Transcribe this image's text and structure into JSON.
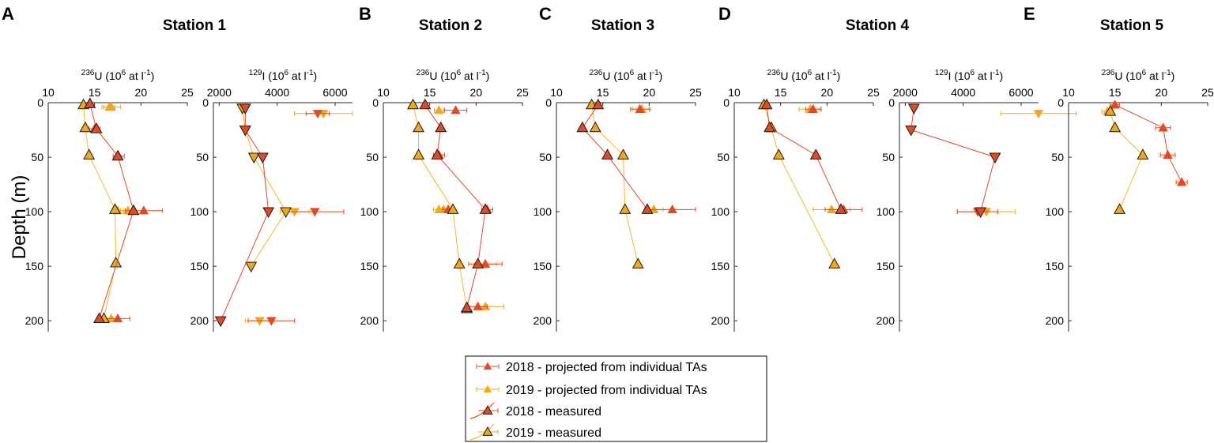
{
  "colors": {
    "c2018": "#e04a25",
    "c2019": "#f2a81d",
    "c2019line": "#f5b82a"
  },
  "ylabel": "Depth (m)",
  "legend": [
    {
      "key": "p18",
      "label": "2018 - projected from individual TAs"
    },
    {
      "key": "p19",
      "label": "2019 - projected from individual TAs"
    },
    {
      "key": "m18",
      "label": "2018 - measured"
    },
    {
      "key": "m19",
      "label": "2019 - measured"
    }
  ],
  "letters": [
    "A",
    "B",
    "C",
    "D",
    "E"
  ],
  "stations": [
    "Station 1",
    "Station 2",
    "Station 3",
    "Station 4",
    "Station 5"
  ],
  "chart_data": [
    {
      "type": "scatter",
      "id": "s1u",
      "letter": "A",
      "station": "Station 1",
      "xlabel": {
        "sup": "236",
        "iso": "U",
        "unit": "6",
        "rest": " at l"
      },
      "xlim": [
        10,
        25
      ],
      "ylim": [
        0,
        210
      ],
      "xticks": [
        10,
        15,
        20,
        25
      ],
      "yticks": [
        0,
        50,
        100,
        150,
        200
      ],
      "series": [
        {
          "name": "2019 - measured",
          "marker": "up",
          "line": true,
          "points": [
            {
              "x": 13.8,
              "y": 2
            },
            {
              "x": 14,
              "y": 23
            },
            {
              "x": 14.4,
              "y": 48
            },
            {
              "x": 17.2,
              "y": 98
            },
            {
              "x": 17.3,
              "y": 147
            },
            {
              "x": 16,
              "y": 198
            }
          ]
        },
        {
          "name": "2018 - measured",
          "marker": "up",
          "line": true,
          "points": [
            {
              "x": 14.5,
              "y": 1
            },
            {
              "x": 15.2,
              "y": 24
            },
            {
              "x": 17.5,
              "y": 49
            },
            {
              "x": 19.2,
              "y": 99
            },
            {
              "x": 15.5,
              "y": 198
            }
          ]
        },
        {
          "name": "2019 - projected",
          "marker": "up",
          "points": [
            {
              "x": 16.8,
              "y": 4,
              "xerr": 1
            },
            {
              "x": 16.6,
              "y": 4,
              "xerr": 0.6
            },
            {
              "x": 18.6,
              "y": 99,
              "xerr": 0.8
            },
            {
              "x": 17.5,
              "y": 99,
              "xerr": 0.6
            },
            {
              "x": 16.8,
              "y": 198,
              "xerr": 0.8
            }
          ]
        },
        {
          "name": "2018 - projected",
          "marker": "up",
          "points": [
            {
              "x": 15,
              "y": 24,
              "xerr": 0.6
            },
            {
              "x": 17.6,
              "y": 49,
              "xerr": 0.6
            },
            {
              "x": 20.3,
              "y": 99,
              "xerr": 2
            },
            {
              "x": 17.5,
              "y": 198,
              "xerr": 1.3
            }
          ]
        }
      ]
    },
    {
      "type": "scatter",
      "id": "s1i",
      "station": "Station 1",
      "xlabel": {
        "sup": "129",
        "iso": "I",
        "unit": "6",
        "rest": " at l"
      },
      "xlim": [
        1800,
        6600
      ],
      "ylim": [
        0,
        210
      ],
      "xticks": [
        2000,
        4000,
        6000
      ],
      "yticks": [
        0,
        50,
        100,
        150,
        200
      ],
      "series": [
        {
          "name": "2019 - measured",
          "marker": "down",
          "line": true,
          "points": [
            {
              "x": 2800,
              "y": 5
            },
            {
              "x": 2900,
              "y": 25
            },
            {
              "x": 3200,
              "y": 50
            },
            {
              "x": 4300,
              "y": 100
            },
            {
              "x": 3100,
              "y": 150
            }
          ]
        },
        {
          "name": "2018 - measured",
          "marker": "down",
          "line": true,
          "points": [
            {
              "x": 2900,
              "y": 5
            },
            {
              "x": 2900,
              "y": 25
            },
            {
              "x": 3500,
              "y": 50
            },
            {
              "x": 3700,
              "y": 100
            },
            {
              "x": 2050,
              "y": 200
            }
          ]
        },
        {
          "name": "2019 - projected",
          "marker": "down",
          "points": [
            {
              "x": 5600,
              "y": 10,
              "xerr": 1000
            },
            {
              "x": 4600,
              "y": 100,
              "xerr": 500
            },
            {
              "x": 3400,
              "y": 200,
              "xerr": 500
            }
          ]
        },
        {
          "name": "2018 - projected",
          "marker": "down",
          "points": [
            {
              "x": 5400,
              "y": 10,
              "xerr": 400
            },
            {
              "x": 5300,
              "y": 100,
              "xerr": 1000
            },
            {
              "x": 3800,
              "y": 200,
              "xerr": 800
            }
          ]
        }
      ]
    },
    {
      "type": "scatter",
      "id": "s2u",
      "letter": "B",
      "station": "Station 2",
      "xlabel": {
        "sup": "236",
        "iso": "U",
        "unit": "6",
        "rest": " at l"
      },
      "xlim": [
        10,
        25
      ],
      "ylim": [
        0,
        210
      ],
      "xticks": [
        10,
        15,
        20,
        25
      ],
      "yticks": [
        0,
        50,
        100,
        150,
        200
      ],
      "series": [
        {
          "name": "2019 - measured",
          "marker": "up",
          "line": true,
          "points": [
            {
              "x": 13.2,
              "y": 2
            },
            {
              "x": 13.8,
              "y": 23
            },
            {
              "x": 13.8,
              "y": 48
            },
            {
              "x": 17.5,
              "y": 98
            },
            {
              "x": 18.2,
              "y": 148
            },
            {
              "x": 19,
              "y": 189
            }
          ]
        },
        {
          "name": "2018 - measured",
          "marker": "up",
          "line": true,
          "points": [
            {
              "x": 14.5,
              "y": 2
            },
            {
              "x": 16.2,
              "y": 23
            },
            {
              "x": 15.8,
              "y": 48
            },
            {
              "x": 21,
              "y": 98
            },
            {
              "x": 20.2,
              "y": 148
            },
            {
              "x": 19,
              "y": 188
            }
          ]
        },
        {
          "name": "2019 - projected",
          "marker": "up",
          "points": [
            {
              "x": 16,
              "y": 7,
              "xerr": 0.5
            },
            {
              "x": 16,
              "y": 98,
              "xerr": 0.6
            },
            {
              "x": 16.5,
              "y": 98,
              "xerr": 0.5
            },
            {
              "x": 21,
              "y": 148,
              "xerr": 1.2
            },
            {
              "x": 21,
              "y": 187,
              "xerr": 2
            }
          ]
        },
        {
          "name": "2018 - projected",
          "marker": "up",
          "points": [
            {
              "x": 17.8,
              "y": 7,
              "xerr": 1.2
            },
            {
              "x": 16,
              "y": 48,
              "xerr": 0.6
            },
            {
              "x": 17,
              "y": 98,
              "xerr": 0.6
            },
            {
              "x": 21.2,
              "y": 98,
              "xerr": 0.6
            },
            {
              "x": 21,
              "y": 148,
              "xerr": 1.8
            },
            {
              "x": 20.2,
              "y": 187,
              "xerr": 1
            }
          ]
        }
      ]
    },
    {
      "type": "scatter",
      "id": "s3u",
      "letter": "C",
      "station": "Station 3",
      "xlabel": {
        "sup": "236",
        "iso": "U",
        "unit": "6",
        "rest": " at l"
      },
      "xlim": [
        10,
        25
      ],
      "ylim": [
        0,
        210
      ],
      "xticks": [
        10,
        15,
        20,
        25
      ],
      "yticks": [
        0,
        50,
        100,
        150,
        200
      ],
      "series": [
        {
          "name": "2019 - measured",
          "marker": "up",
          "line": true,
          "points": [
            {
              "x": 13.8,
              "y": 2
            },
            {
              "x": 14.2,
              "y": 23
            },
            {
              "x": 17.2,
              "y": 48
            },
            {
              "x": 17.4,
              "y": 98
            },
            {
              "x": 18.8,
              "y": 148
            }
          ]
        },
        {
          "name": "2018 - measured",
          "marker": "up",
          "line": true,
          "points": [
            {
              "x": 14.5,
              "y": 2
            },
            {
              "x": 12.8,
              "y": 23
            },
            {
              "x": 15.5,
              "y": 48
            },
            {
              "x": 19.8,
              "y": 98
            }
          ]
        },
        {
          "name": "2019 - projected",
          "marker": "up",
          "points": [
            {
              "x": 19.2,
              "y": 6,
              "xerr": 1
            },
            {
              "x": 20.5,
              "y": 98,
              "xerr": 1
            }
          ]
        },
        {
          "name": "2018 - projected",
          "marker": "up",
          "points": [
            {
              "x": 19,
              "y": 6,
              "xerr": 1
            },
            {
              "x": 22.5,
              "y": 98,
              "xerr": 2.5
            }
          ]
        }
      ]
    },
    {
      "type": "scatter",
      "id": "s4u",
      "letter": "D",
      "station": "Station 4",
      "xlabel": {
        "sup": "236",
        "iso": "U",
        "unit": "6",
        "rest": " at l"
      },
      "xlim": [
        10,
        25
      ],
      "ylim": [
        0,
        210
      ],
      "xticks": [
        10,
        15,
        20,
        25
      ],
      "yticks": [
        0,
        50,
        100,
        150,
        200
      ],
      "series": [
        {
          "name": "2019 - measured",
          "marker": "up",
          "line": true,
          "points": [
            {
              "x": 13.2,
              "y": 2
            },
            {
              "x": 14,
              "y": 23
            },
            {
              "x": 14.8,
              "y": 48
            },
            {
              "x": 20.8,
              "y": 148
            }
          ]
        },
        {
          "name": "2018 - measured",
          "marker": "up",
          "line": true,
          "points": [
            {
              "x": 13.5,
              "y": 2
            },
            {
              "x": 13.8,
              "y": 23
            },
            {
              "x": 18.8,
              "y": 48
            },
            {
              "x": 21.5,
              "y": 98
            }
          ]
        },
        {
          "name": "2019 - projected",
          "marker": "up",
          "points": [
            {
              "x": 18.2,
              "y": 6,
              "xerr": 1.2
            },
            {
              "x": 20.5,
              "y": 98,
              "xerr": 2
            }
          ]
        },
        {
          "name": "2018 - projected",
          "marker": "up",
          "points": [
            {
              "x": 18.5,
              "y": 6,
              "xerr": 0.8
            },
            {
              "x": 21.8,
              "y": 98,
              "xerr": 2
            }
          ]
        }
      ]
    },
    {
      "type": "scatter",
      "id": "s4i",
      "station": "Station 4",
      "xlabel": {
        "sup": "129",
        "iso": "I",
        "unit": "6",
        "rest": " at l"
      },
      "xlim": [
        1800,
        6600
      ],
      "ylim": [
        0,
        210
      ],
      "xticks": [
        2000,
        4000,
        6000
      ],
      "yticks": [
        0,
        50,
        100,
        150,
        200
      ],
      "series": [
        {
          "name": "2018 - measured",
          "marker": "down",
          "line": true,
          "points": [
            {
              "x": 2300,
              "y": 5
            },
            {
              "x": 2200,
              "y": 25
            },
            {
              "x": 5100,
              "y": 50
            },
            {
              "x": 4600,
              "y": 100
            }
          ]
        },
        {
          "name": "2019 - projected",
          "marker": "down",
          "points": [
            {
              "x": 6600,
              "y": 10,
              "xerr": 1300
            },
            {
              "x": 4800,
              "y": 100,
              "xerr": 1000
            }
          ]
        },
        {
          "name": "2018 - projected",
          "marker": "down",
          "points": [
            {
              "x": 4500,
              "y": 100,
              "xerr": 700
            }
          ]
        }
      ]
    },
    {
      "type": "scatter",
      "id": "s5u",
      "letter": "E",
      "station": "Station 5",
      "xlabel": {
        "sup": "236",
        "iso": "U",
        "unit": "6",
        "rest": " at l"
      },
      "xlim": [
        10,
        25
      ],
      "ylim": [
        0,
        210
      ],
      "xticks": [
        10,
        15,
        20,
        25
      ],
      "yticks": [
        0,
        50,
        100,
        150,
        200
      ],
      "series": [
        {
          "name": "2019 - measured",
          "marker": "up",
          "line": true,
          "points": [
            {
              "x": 14.5,
              "y": 8
            },
            {
              "x": 15,
              "y": 23
            },
            {
              "x": 18,
              "y": 48
            },
            {
              "x": 15.5,
              "y": 98
            }
          ]
        },
        {
          "name": "2018 - measured",
          "marker": "up",
          "line": false,
          "points": []
        },
        {
          "name": "2018 - projected",
          "marker": "up",
          "line": true,
          "points": [
            {
              "x": 15,
              "y": 2,
              "xerr": 0.5
            },
            {
              "x": 20.2,
              "y": 23,
              "xerr": 0.8
            },
            {
              "x": 20.7,
              "y": 48,
              "xerr": 0.8
            },
            {
              "x": 22.2,
              "y": 73,
              "xerr": 0.6
            }
          ]
        },
        {
          "name": "2019 - projected",
          "marker": "up",
          "points": [
            {
              "x": 14.2,
              "y": 8,
              "xerr": 0.6
            }
          ]
        }
      ]
    }
  ]
}
